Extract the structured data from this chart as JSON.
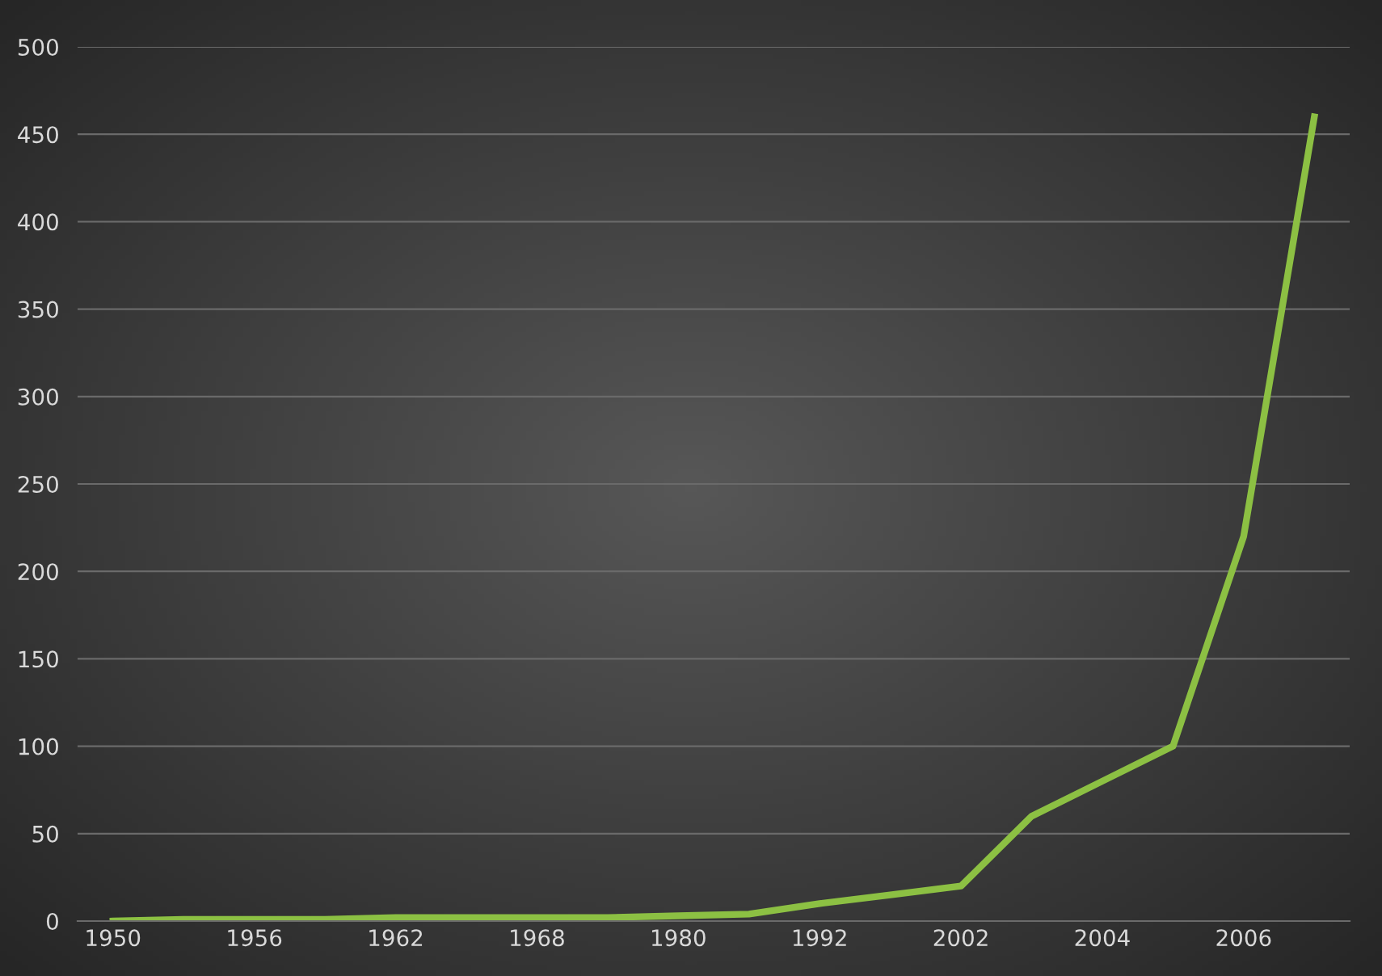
{
  "chart_data": {
    "type": "line",
    "categories": [
      "1950",
      null,
      "1956",
      null,
      "1962",
      null,
      "1968",
      null,
      "1980",
      null,
      "1992",
      null,
      "2002",
      null,
      "2004",
      null,
      "2006",
      null
    ],
    "series": [
      {
        "color": "#8cc043",
        "values": [
          0,
          1,
          1,
          1,
          2,
          2,
          2,
          2,
          3,
          4,
          10,
          15,
          20,
          60,
          80,
          100,
          220,
          460
        ]
      }
    ],
    "ylim": [
      0,
      500
    ],
    "yticks": [
      0,
      50,
      100,
      150,
      200,
      250,
      300,
      350,
      400,
      450,
      500
    ],
    "grid": "y",
    "legend": false,
    "marker": "none",
    "line_style": "solid"
  }
}
